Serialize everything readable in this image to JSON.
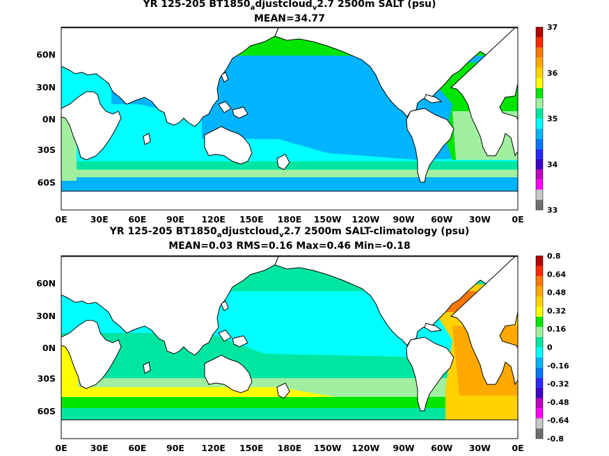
{
  "figures": [
    {
      "title_pre": "YR 125-205 BT1850",
      "title_sub1": "a",
      "title_mid": "djustcloud",
      "title_sub2": "v",
      "title_post": "2.7 2500m SALT (psu)",
      "stats": "MEAN=34.77"
    },
    {
      "title_pre": "YR 125-205 BT1850",
      "title_sub1": "a",
      "title_mid": "djustcloud",
      "title_sub2": "v",
      "title_post": "2.7 2500m SALT-climatology (psu)",
      "stats": "MEAN=0.03   RMS=0.16   Max=0.46   Min=-0.18"
    }
  ],
  "chart_data": [
    {
      "type": "heatmap",
      "variable": "SALT (psu)",
      "mean": 34.77,
      "x_ticks": [
        "0E",
        "30E",
        "60E",
        "90E",
        "120E",
        "150E",
        "180E",
        "150W",
        "120W",
        "90W",
        "60W",
        "30W",
        "0E"
      ],
      "y_ticks": [
        "60N",
        "30N",
        "0N",
        "30S",
        "60S"
      ],
      "colorbar": {
        "labels": [
          "33",
          "34",
          "35",
          "36",
          "37"
        ],
        "colors": [
          "#6e6e6e",
          "#c8c8c8",
          "#ff00ff",
          "#c000c0",
          "#3c00c8",
          "#2828ff",
          "#0078ff",
          "#00b4ff",
          "#00ffff",
          "#00e6a0",
          "#a0f0a0",
          "#00e600",
          "#ffff00",
          "#ffd200",
          "#ffa800",
          "#ff7800",
          "#ff2800",
          "#b40000"
        ]
      }
    },
    {
      "type": "heatmap",
      "variable": "SALT-climatology (psu)",
      "mean": 0.03,
      "rms": 0.16,
      "max": 0.46,
      "min": -0.18,
      "x_ticks": [
        "0E",
        "30E",
        "60E",
        "90E",
        "120E",
        "150E",
        "180E",
        "150W",
        "120W",
        "90W",
        "60W",
        "30W",
        "0E"
      ],
      "y_ticks": [
        "60N",
        "30N",
        "0N",
        "30S",
        "60S"
      ],
      "colorbar": {
        "labels": [
          "0.8",
          "0.64",
          "0.48",
          "0.32",
          "0.16",
          "0",
          "-0.16",
          "-0.32",
          "-0.48",
          "-0.64",
          "-0.8"
        ],
        "colors": [
          "#6e6e6e",
          "#c8c8c8",
          "#ff00ff",
          "#c000c0",
          "#3c00c8",
          "#2828ff",
          "#0078ff",
          "#00b4ff",
          "#00ffff",
          "#00e6a0",
          "#a0f0a0",
          "#00e600",
          "#ffff00",
          "#ffd200",
          "#ffa800",
          "#ff7800",
          "#ff2800",
          "#b40000"
        ]
      }
    }
  ]
}
